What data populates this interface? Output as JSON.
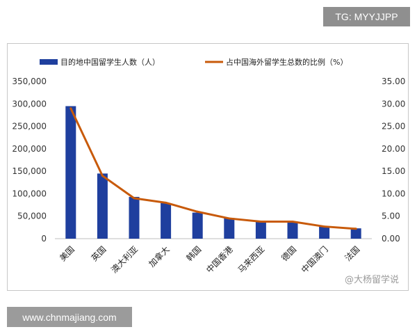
{
  "watermarks": {
    "top": "TG: MYYJJPP",
    "bottom": "www.chnmajiang.com",
    "corner": "@大杨留学说"
  },
  "chart_data": {
    "type": "bar",
    "categories": [
      "美国",
      "英国",
      "澳大利亚",
      "加拿大",
      "韩国",
      "中国香港",
      "马来西亚",
      "德国",
      "中国澳门",
      "法国"
    ],
    "series": [
      {
        "name": "目的地中国留学生人数（人）",
        "type": "bar",
        "axis": "left",
        "color": "#1f3f9e",
        "values": [
          295000,
          145000,
          93000,
          79000,
          58000,
          46000,
          38000,
          38000,
          27000,
          23000
        ]
      },
      {
        "name": "占中国海外留学生总数的比例（%）",
        "type": "line",
        "axis": "right",
        "color": "#c85a0a",
        "values": [
          29.0,
          14.0,
          9.0,
          8.0,
          6.0,
          4.5,
          3.8,
          3.8,
          2.7,
          2.2
        ]
      }
    ],
    "left_axis": {
      "ylim": [
        0,
        350000
      ],
      "ticks": [
        "0",
        "50,000",
        "100,000",
        "150,000",
        "200,000",
        "250,000",
        "300,000",
        "350,000"
      ]
    },
    "right_axis": {
      "ylim": [
        0,
        35
      ],
      "ticks": [
        "0.00",
        "5.00",
        "10.00",
        "15.00",
        "20.00",
        "25.00",
        "30.00",
        "35.00"
      ]
    },
    "grid": false,
    "legend": "top"
  }
}
